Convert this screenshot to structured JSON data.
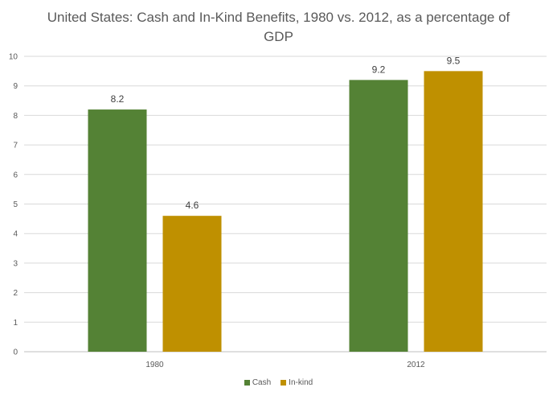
{
  "chart_data": {
    "type": "bar",
    "title": "United States: Cash and In-Kind Benefits, 1980 vs. 2012, as a percentage of GDP",
    "xlabel": "",
    "ylabel": "",
    "categories": [
      "1980",
      "2012"
    ],
    "series": [
      {
        "name": "Cash",
        "values": [
          8.2,
          9.2
        ],
        "color": "#548235"
      },
      {
        "name": "In-kind",
        "values": [
          4.6,
          9.5
        ],
        "color": "#bf9000"
      }
    ],
    "ylim": [
      0,
      10
    ],
    "yticks": [
      0,
      1,
      2,
      3,
      4,
      5,
      6,
      7,
      8,
      9,
      10
    ],
    "grid": true,
    "legend_position": "bottom",
    "data_labels": true
  }
}
